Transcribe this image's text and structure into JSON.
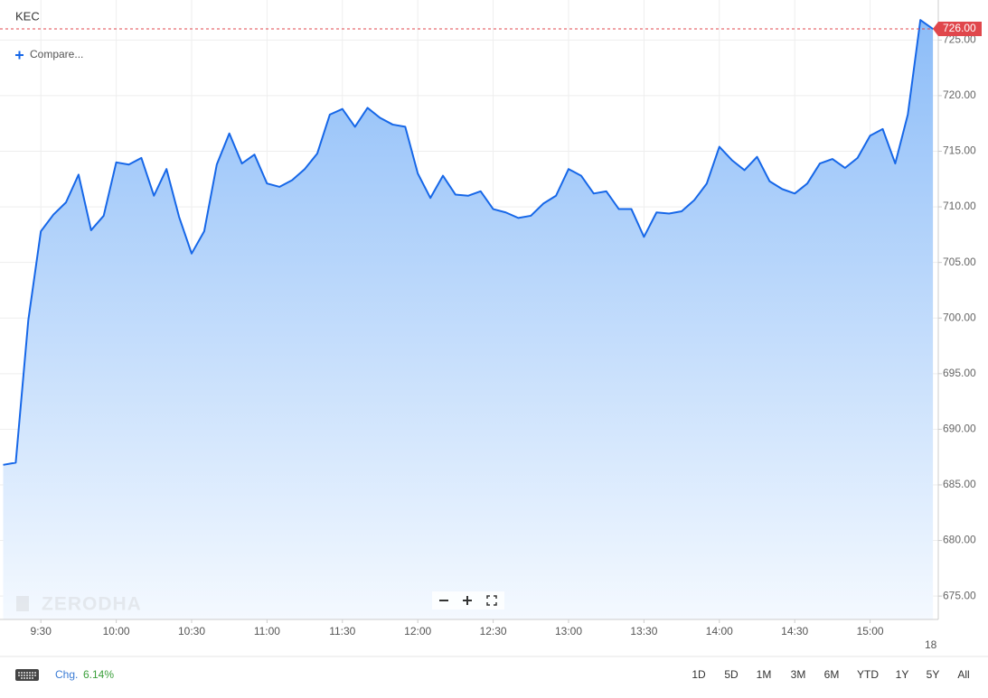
{
  "chart_data": {
    "type": "area",
    "series": [
      {
        "name": "KEC",
        "color": "#1667e8",
        "values": [
          686.8,
          687.0,
          699.8,
          707.8,
          709.3,
          710.4,
          712.9,
          707.9,
          709.2,
          714.0,
          713.8,
          714.4,
          711.0,
          713.4,
          709.1,
          705.8,
          707.8,
          713.8,
          716.6,
          713.9,
          714.7,
          712.1,
          711.8,
          712.4,
          713.4,
          714.8,
          718.3,
          718.8,
          717.2,
          718.9,
          718.0,
          717.4,
          717.2,
          713.0,
          710.8,
          712.8,
          711.1,
          711.0,
          711.4,
          709.8,
          709.5,
          709.0,
          709.2,
          710.3,
          711.0,
          713.4,
          712.8,
          711.2,
          711.4,
          709.8,
          709.8,
          707.3,
          709.5,
          709.4,
          709.6,
          710.6,
          712.1,
          715.4,
          714.2,
          713.3,
          714.5,
          712.3,
          711.6,
          711.2,
          712.1,
          713.9,
          714.3,
          713.5,
          714.4,
          716.4,
          717.0,
          713.9,
          718.3,
          726.8,
          726.0
        ]
      }
    ],
    "categories": [
      null,
      null,
      null,
      "9:30",
      null,
      null,
      null,
      null,
      null,
      "10:00",
      null,
      null,
      null,
      null,
      null,
      "10:30",
      null,
      null,
      null,
      null,
      null,
      "11:00",
      null,
      null,
      null,
      null,
      null,
      "11:30",
      null,
      null,
      null,
      null,
      null,
      "12:00",
      null,
      null,
      null,
      null,
      null,
      "12:30",
      null,
      null,
      null,
      null,
      null,
      "13:00",
      null,
      null,
      null,
      null,
      null,
      "13:30",
      null,
      null,
      null,
      null,
      null,
      "14:00",
      null,
      null,
      null,
      null,
      null,
      "14:30",
      null,
      null,
      null,
      null,
      null,
      "15:00",
      null,
      null,
      null,
      null,
      null
    ],
    "ylim": [
      672.9,
      728.6
    ],
    "yticks": [
      {
        "value": 675,
        "label": "675.00"
      },
      {
        "value": 680,
        "label": "680.00"
      },
      {
        "value": 685,
        "label": "685.00"
      },
      {
        "value": 690,
        "label": "690.00"
      },
      {
        "value": 695,
        "label": "695.00"
      },
      {
        "value": 700,
        "label": "700.00"
      },
      {
        "value": 705,
        "label": "705.00"
      },
      {
        "value": 710,
        "label": "710.00"
      },
      {
        "value": 715,
        "label": "715.00"
      },
      {
        "value": 720,
        "label": "720.00"
      },
      {
        "value": 725,
        "label": "725.00"
      }
    ],
    "grid": true,
    "last_price_label": "726.00",
    "date_label": "18"
  },
  "toolbar": {
    "compare": "Compare...",
    "watermark": "ZERODHA"
  },
  "footer": {
    "change_label": "Chg.",
    "change_value": "6.14%",
    "ranges": [
      "1D",
      "5D",
      "1M",
      "3M",
      "6M",
      "YTD",
      "1Y",
      "5Y",
      "All"
    ]
  }
}
